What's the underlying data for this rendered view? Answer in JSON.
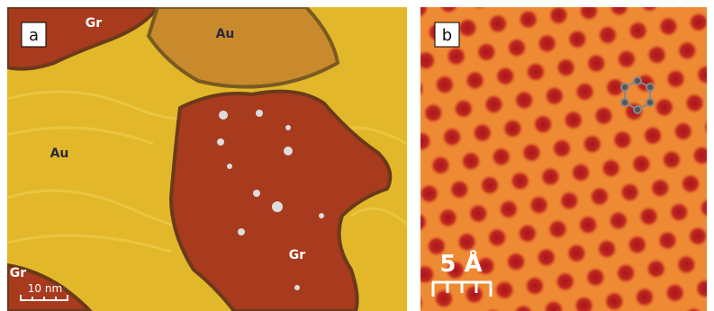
{
  "panels": [
    {
      "label": "a",
      "annotations": [
        "Gr",
        "Au",
        "Au",
        "Gr",
        "Gr"
      ],
      "scale_bar": "10 nm"
    },
    {
      "label": "b",
      "scale_bar": "5 Å"
    }
  ]
}
